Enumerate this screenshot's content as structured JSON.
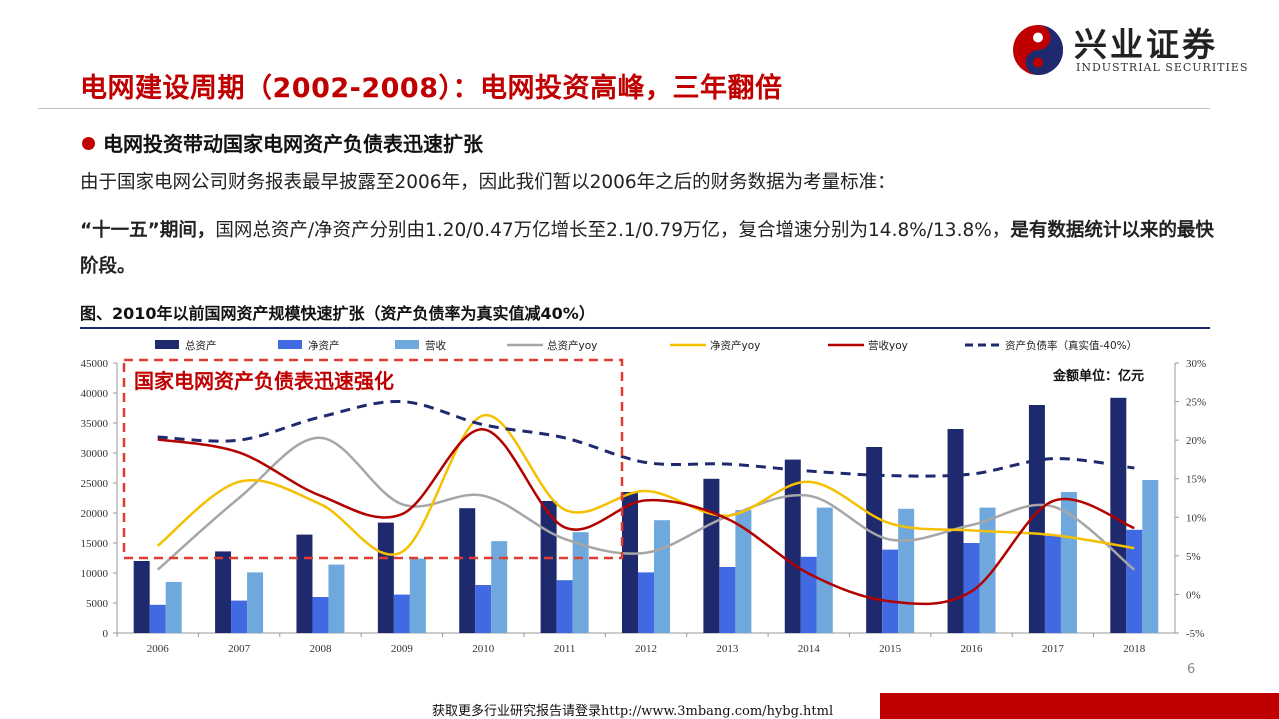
{
  "header": {
    "title": "电网建设周期（2002-2008）：电网投资高峰，三年翻倍",
    "logo_cn": "兴业证券",
    "logo_en": "INDUSTRIAL SECURITIES"
  },
  "body": {
    "subheading": "电网投资带动国家电网资产负债表迅速扩张",
    "paragraph1": "由于国家电网公司财务报表最早披露至2006年，因此我们暂以2006年之后的财务数据为考量标准：",
    "p2_bold1": "“十一五”期间，",
    "p2_normal": "国网总资产/净资产分别由1.20/0.47万亿增长至2.1/0.79万亿，复合增速分别为14.8%/13.8%，",
    "p2_bold2": "是有数据统计以来的最快阶段。"
  },
  "figure": {
    "title": "图、2010年以前国网资产规模快速扩张（资产负债率为真实值减40%）"
  },
  "page_number": "6",
  "footer": "获取更多行业研究报告请登录http://www.3mbang.com/hybg.html",
  "colors": {
    "brand_red": "#c00000",
    "navy": "#1f2a6e",
    "blue": "#4169e1",
    "light_blue": "#6fa8dc",
    "gray": "#a6a6a6",
    "yellow": "#f5c000",
    "dark_red": "#b30000",
    "dashed_navy": "#1f2a6e"
  },
  "chart_data": {
    "type": "bar",
    "categories": [
      "2006",
      "2007",
      "2008",
      "2009",
      "2010",
      "2011",
      "2012",
      "2013",
      "2014",
      "2015",
      "2016",
      "2017",
      "2018"
    ],
    "y_left": {
      "min": 0,
      "max": 45000,
      "step": 5000,
      "ticks": [
        "0",
        "5000",
        "10000",
        "15000",
        "20000",
        "25000",
        "30000",
        "35000",
        "40000",
        "45000"
      ]
    },
    "y_right": {
      "min": -5,
      "max": 30,
      "step": 5,
      "ticks": [
        "-5%",
        "0%",
        "5%",
        "10%",
        "15%",
        "20%",
        "25%",
        "30%"
      ]
    },
    "unit_note": "金额单位：亿元",
    "annotation": "国家电网资产负债表迅速强化",
    "legend": [
      "总资产",
      "净资产",
      "营收",
      "总资产yoy",
      "净资产yoy",
      "营收yoy",
      "资产负债率（真实值-40%）"
    ],
    "series": [
      {
        "name": "总资产",
        "kind": "bar",
        "axis": "left",
        "color": "#1f2a6e",
        "values": [
          12000,
          13600,
          16400,
          18400,
          20800,
          22000,
          23500,
          25700,
          28900,
          31000,
          34000,
          38000,
          39200
        ]
      },
      {
        "name": "净资产",
        "kind": "bar",
        "axis": "left",
        "color": "#4169e1",
        "values": [
          4700,
          5400,
          6000,
          6400,
          8000,
          8800,
          10100,
          11000,
          12700,
          13900,
          15000,
          16200,
          17200
        ]
      },
      {
        "name": "营收",
        "kind": "bar",
        "axis": "left",
        "color": "#6fa8dc",
        "values": [
          8500,
          10100,
          11400,
          12400,
          15300,
          16800,
          18800,
          20500,
          20900,
          20700,
          20900,
          23500,
          25500
        ]
      },
      {
        "name": "总资产yoy",
        "kind": "line",
        "axis": "right",
        "color": "#a6a6a6",
        "values": [
          3.2,
          12.5,
          20.3,
          11.7,
          12.8,
          7.2,
          5.4,
          10.1,
          12.8,
          7.1,
          9.0,
          11.4,
          3.2
        ]
      },
      {
        "name": "净资产yoy",
        "kind": "line",
        "axis": "right",
        "color": "#f5c000",
        "values": [
          6.3,
          14.6,
          11.7,
          5.5,
          23.2,
          11.0,
          13.4,
          10.2,
          14.6,
          9.2,
          8.3,
          7.7,
          6.0
        ]
      },
      {
        "name": "营收yoy",
        "kind": "line",
        "axis": "right",
        "color": "#b30000",
        "values": [
          20.1,
          18.4,
          12.8,
          10.4,
          21.4,
          8.7,
          12.2,
          9.8,
          2.7,
          -0.9,
          0.4,
          12.1,
          8.6
        ]
      },
      {
        "name": "资产负债率（真实值-40%）",
        "kind": "line",
        "axis": "right",
        "color": "#1f2a6e",
        "dashed": true,
        "values": [
          20.4,
          20.0,
          23.0,
          25.0,
          22.0,
          20.3,
          17.1,
          16.9,
          16.0,
          15.4,
          15.6,
          17.6,
          16.4
        ]
      }
    ]
  }
}
